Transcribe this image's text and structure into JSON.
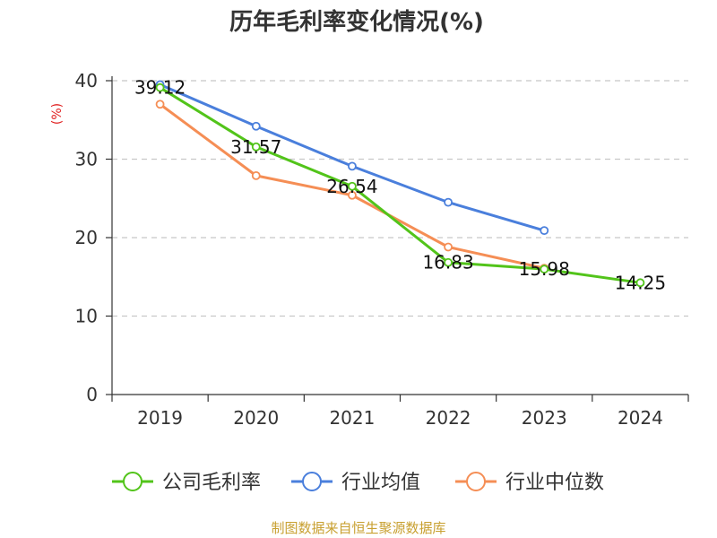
{
  "colors": {
    "series_colors": [
      "#52c41a",
      "#4a7fdc",
      "#f58e55"
    ],
    "source_color": "#c8a030",
    "ylabel_color": "#e02020"
  },
  "chart_data": {
    "type": "line",
    "title": "历年毛利率变化情况(%)",
    "ylabel": "(%)",
    "xlabel": "",
    "categories": [
      "2019",
      "2020",
      "2021",
      "2022",
      "2023",
      "2024"
    ],
    "ylim": [
      0,
      40
    ],
    "yticks": [
      0,
      10,
      20,
      30,
      40
    ],
    "grid": true,
    "legend_position": "bottom",
    "series": [
      {
        "name": "公司毛利率",
        "values": [
          39.12,
          31.57,
          26.54,
          16.83,
          15.98,
          14.25
        ],
        "labels": [
          "39.12",
          "31.57",
          "26.54",
          "16.83",
          "15.98",
          "14.25"
        ]
      },
      {
        "name": "行业均值",
        "values": [
          39.5,
          34.2,
          29.1,
          24.5,
          20.9,
          null
        ]
      },
      {
        "name": "行业中位数",
        "values": [
          37.0,
          27.9,
          25.4,
          18.8,
          16.1,
          null
        ]
      }
    ]
  },
  "source": "制图数据来自恒生聚源数据库"
}
